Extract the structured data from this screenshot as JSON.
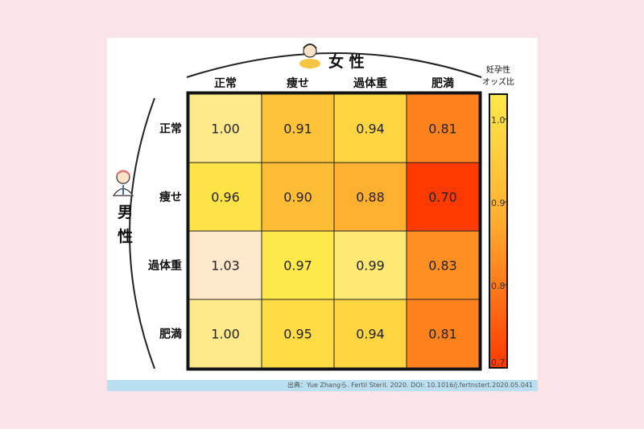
{
  "chart_data": {
    "type": "heatmap",
    "column_group_label": "女 性",
    "row_group_label_1": "男",
    "row_group_label_2": "性",
    "colorbar_title_1": "妊孕性",
    "colorbar_title_2": "オッズ比",
    "columns": [
      "正常",
      "痩せ",
      "過体重",
      "肥満"
    ],
    "rows": [
      "正常",
      "痩せ",
      "過体重",
      "肥満"
    ],
    "values": [
      [
        1.0,
        0.91,
        0.94,
        0.81
      ],
      [
        0.96,
        0.9,
        0.88,
        0.7
      ],
      [
        1.03,
        0.97,
        0.99,
        0.83
      ],
      [
        1.0,
        0.95,
        0.94,
        0.81
      ]
    ],
    "labels": [
      [
        "1.00",
        "0.91",
        "0.94",
        "0.81"
      ],
      [
        "0.96",
        "0.90",
        "0.88",
        "0.70"
      ],
      [
        "1.03",
        "0.97",
        "0.99",
        "0.83"
      ],
      [
        "1.00",
        "0.95",
        "0.94",
        "0.81"
      ]
    ],
    "colorbar_ticks": [
      "1.0",
      "0.9",
      "0.8",
      "0.7"
    ],
    "colorbar_range": [
      0.7,
      1.03
    ],
    "colors": {
      "low": "#ff3a00",
      "mid": "#ffb030",
      "high": "#ffe94a",
      "top": "#fde8cc"
    }
  },
  "source": "出典：Yue Zhangら. Fertil Steril. 2020. DOI: 10.1016/j.fertnstert.2020.05.041"
}
